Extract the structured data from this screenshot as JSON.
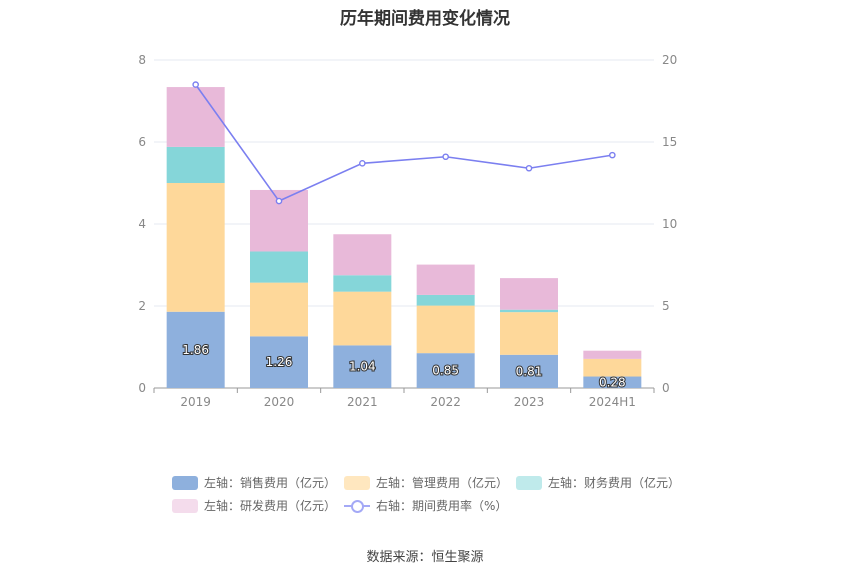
{
  "title": "历年期间费用变化情况",
  "source": "数据来源：恒生聚源",
  "colors": {
    "sales": "#8eb0dd",
    "admin": "#fed89a",
    "finance": "#85d6d9",
    "rd": "#e8b9d9",
    "rate": "#7b7ff0",
    "grid": "#e6e9f2"
  },
  "chart_data": {
    "type": "bar",
    "stacked": true,
    "categories": [
      "2019",
      "2020",
      "2021",
      "2022",
      "2023",
      "2024H1"
    ],
    "series": [
      {
        "name": "左轴：销售费用（亿元）",
        "key": "sales",
        "axis": "left",
        "values": [
          1.86,
          1.26,
          1.04,
          0.85,
          0.81,
          0.28
        ],
        "labels": [
          "1.86",
          "1.26",
          "1.04",
          "0.85",
          "0.81",
          "0.28"
        ]
      },
      {
        "name": "左轴：管理费用（亿元）",
        "key": "admin",
        "axis": "left",
        "values": [
          3.14,
          1.31,
          1.31,
          1.16,
          1.04,
          0.43
        ]
      },
      {
        "name": "左轴：财务费用（亿元）",
        "key": "finance",
        "axis": "left",
        "values": [
          0.88,
          0.76,
          0.4,
          0.26,
          0.06,
          0.0
        ]
      },
      {
        "name": "左轴：研发费用（亿元）",
        "key": "rd",
        "axis": "left",
        "values": [
          1.46,
          1.5,
          1.0,
          0.74,
          0.77,
          0.2
        ]
      },
      {
        "name": "右轴：期间费用率（%）",
        "key": "rate",
        "axis": "right",
        "type": "line",
        "values": [
          18.5,
          11.4,
          13.7,
          14.1,
          13.4,
          14.2
        ]
      }
    ],
    "y_left": {
      "min": 0,
      "max": 8,
      "ticks": [
        0,
        2,
        4,
        6,
        8
      ]
    },
    "y_right": {
      "min": 0,
      "max": 20,
      "ticks": [
        0,
        5,
        10,
        15,
        20
      ]
    },
    "grid": true,
    "legend_position": "bottom"
  }
}
